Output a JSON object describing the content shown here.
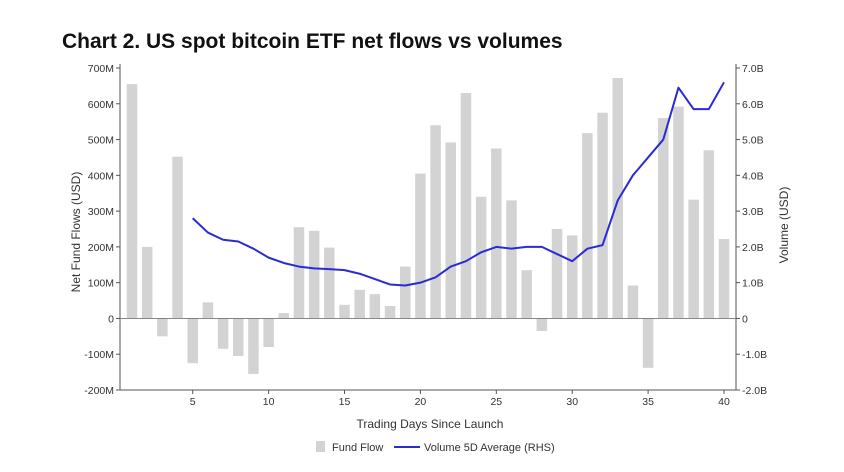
{
  "chart_data": {
    "type": "bar",
    "title": "Chart 2. US spot bitcoin ETF net flows vs volumes",
    "xlabel": "Trading Days Since Launch",
    "ylabel": "Net Fund Flows (USD)",
    "y2label": "Volume (USD)",
    "xlim": [
      1,
      40
    ],
    "xticks": [
      5,
      10,
      15,
      20,
      25,
      30,
      35,
      40
    ],
    "ylim": [
      -200,
      700
    ],
    "yticks": [
      -200,
      -100,
      0,
      100,
      200,
      300,
      400,
      500,
      600,
      700
    ],
    "ytick_labels": [
      "-200M",
      "-100M",
      "0",
      "100M",
      "200M",
      "300M",
      "400M",
      "500M",
      "600M",
      "700M"
    ],
    "y2lim": [
      -2.0,
      7.0
    ],
    "y2ticks": [
      -2.0,
      -1.0,
      0,
      1.0,
      2.0,
      3.0,
      4.0,
      5.0,
      6.0,
      7.0
    ],
    "y2tick_labels": [
      "-2.0B",
      "-1.0B",
      "0",
      "1.0B",
      "2.0B",
      "3.0B",
      "4.0B",
      "5.0B",
      "6.0B",
      "7.0B"
    ],
    "legend_position": "bottom-center",
    "grid": false,
    "series": [
      {
        "name": "Fund Flow",
        "type": "bar",
        "axis": "left",
        "unit": "M",
        "color": "#d3d3d3",
        "x": [
          1,
          2,
          3,
          4,
          5,
          6,
          7,
          8,
          9,
          10,
          11,
          12,
          13,
          14,
          15,
          16,
          17,
          18,
          19,
          20,
          21,
          22,
          23,
          24,
          25,
          26,
          27,
          28,
          29,
          30,
          31,
          32,
          33,
          34,
          35,
          36,
          37,
          38,
          39,
          40
        ],
        "values": [
          655,
          200,
          -50,
          452,
          -125,
          45,
          -85,
          -105,
          -155,
          -80,
          15,
          255,
          245,
          198,
          38,
          80,
          68,
          35,
          145,
          405,
          540,
          492,
          630,
          340,
          475,
          330,
          135,
          -35,
          250,
          232,
          518,
          575,
          672,
          92,
          -138,
          560,
          592,
          332,
          470,
          222
        ]
      },
      {
        "name": "Volume 5D Average (RHS)",
        "type": "line",
        "axis": "right",
        "unit": "B",
        "color": "#2b2bd6",
        "x": [
          5,
          6,
          7,
          8,
          9,
          10,
          11,
          12,
          13,
          14,
          15,
          16,
          17,
          18,
          19,
          20,
          21,
          22,
          23,
          24,
          25,
          26,
          27,
          28,
          29,
          30,
          31,
          32,
          33,
          34,
          35,
          36,
          37,
          38,
          39,
          40
        ],
        "values": [
          2.8,
          2.4,
          2.2,
          2.15,
          1.95,
          1.7,
          1.55,
          1.45,
          1.4,
          1.38,
          1.35,
          1.25,
          1.1,
          0.95,
          0.92,
          1.0,
          1.15,
          1.45,
          1.6,
          1.85,
          2.0,
          1.95,
          2.0,
          2.0,
          1.8,
          1.6,
          1.95,
          2.05,
          3.3,
          4.0,
          4.5,
          5.0,
          6.45,
          5.85,
          5.85,
          6.6
        ]
      }
    ]
  }
}
